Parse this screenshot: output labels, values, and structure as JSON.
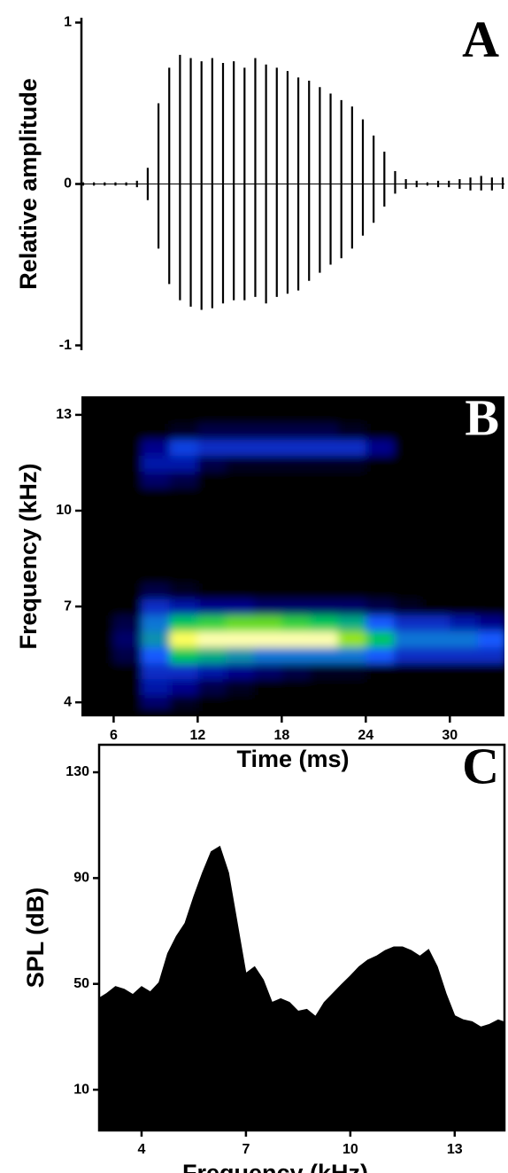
{
  "chart_data": [
    {
      "type": "waveform",
      "ylabel": "Relative amplitude",
      "annotation": "A",
      "color": "#000000",
      "upper": [
        0.01,
        0.01,
        0.01,
        0.01,
        0.01,
        0.02,
        0.1,
        0.5,
        0.72,
        0.8,
        0.78,
        0.76,
        0.78,
        0.75,
        0.76,
        0.72,
        0.78,
        0.74,
        0.72,
        0.7,
        0.66,
        0.64,
        0.6,
        0.56,
        0.52,
        0.48,
        0.4,
        0.3,
        0.2,
        0.08,
        0.03,
        0.02,
        0.01,
        0.02,
        0.02,
        0.03,
        0.04,
        0.05,
        0.04,
        0.04
      ],
      "lower": [
        -0.01,
        -0.01,
        -0.01,
        -0.01,
        -0.01,
        -0.02,
        -0.1,
        -0.4,
        -0.62,
        -0.72,
        -0.76,
        -0.78,
        -0.77,
        -0.74,
        -0.72,
        -0.72,
        -0.7,
        -0.74,
        -0.7,
        -0.68,
        -0.66,
        -0.6,
        -0.55,
        -0.5,
        -0.46,
        -0.4,
        -0.32,
        -0.24,
        -0.14,
        -0.06,
        -0.03,
        -0.02,
        -0.01,
        -0.02,
        -0.02,
        -0.03,
        -0.04,
        -0.04,
        -0.04,
        -0.03
      ],
      "ylim": [
        -1.03,
        1.03
      ],
      "yticks": [
        1,
        0,
        -1
      ]
    },
    {
      "type": "heatmap",
      "xlabel": "Time (ms)",
      "ylabel": "Frequency (kHz)",
      "annotation": "B",
      "x": [
        5,
        7,
        9,
        11,
        13,
        15,
        17,
        19,
        21,
        23,
        25,
        27,
        29,
        31,
        33
      ],
      "y": [
        4,
        4.5,
        5,
        5.5,
        6,
        6.5,
        7,
        7.5,
        8,
        8.5,
        9,
        9.5,
        10,
        10.5,
        11,
        11.5,
        12,
        12.5,
        13
      ],
      "z": [
        [
          0,
          0,
          0.15,
          0.05,
          0,
          0,
          0,
          0,
          0,
          0,
          0,
          0,
          0,
          0,
          0
        ],
        [
          0,
          0,
          0.25,
          0.2,
          0.1,
          0.05,
          0,
          0,
          0,
          0,
          0,
          0,
          0,
          0,
          0
        ],
        [
          0,
          0,
          0.3,
          0.3,
          0.25,
          0.2,
          0.15,
          0.1,
          0.05,
          0.05,
          0,
          0,
          0,
          0,
          0
        ],
        [
          0,
          0.1,
          0.4,
          0.6,
          0.55,
          0.5,
          0.45,
          0.45,
          0.45,
          0.45,
          0.4,
          0.3,
          0.3,
          0.3,
          0.3
        ],
        [
          0,
          0.15,
          0.5,
          0.9,
          0.95,
          0.95,
          0.95,
          0.95,
          0.95,
          0.75,
          0.6,
          0.45,
          0.45,
          0.45,
          0.4
        ],
        [
          0,
          0.1,
          0.45,
          0.6,
          0.65,
          0.7,
          0.7,
          0.65,
          0.6,
          0.55,
          0.4,
          0.3,
          0.3,
          0.25,
          0.2
        ],
        [
          0,
          0,
          0.3,
          0.25,
          0.2,
          0.2,
          0.15,
          0.15,
          0.15,
          0.15,
          0.1,
          0.05,
          0,
          0,
          0
        ],
        [
          0,
          0,
          0.1,
          0.05,
          0,
          0,
          0,
          0,
          0,
          0,
          0,
          0,
          0,
          0,
          0
        ],
        [
          0,
          0,
          0,
          0,
          0,
          0,
          0,
          0,
          0,
          0,
          0,
          0,
          0,
          0,
          0
        ],
        [
          0,
          0,
          0,
          0,
          0,
          0,
          0,
          0,
          0,
          0,
          0,
          0,
          0,
          0,
          0
        ],
        [
          0,
          0,
          0,
          0,
          0,
          0,
          0,
          0,
          0,
          0,
          0,
          0,
          0,
          0,
          0
        ],
        [
          0,
          0,
          0,
          0,
          0,
          0,
          0,
          0,
          0,
          0,
          0,
          0,
          0,
          0,
          0
        ],
        [
          0,
          0,
          0,
          0,
          0,
          0,
          0,
          0,
          0,
          0,
          0,
          0,
          0,
          0,
          0
        ],
        [
          0,
          0,
          0,
          0,
          0,
          0,
          0,
          0,
          0,
          0,
          0,
          0,
          0,
          0,
          0
        ],
        [
          0,
          0,
          0.15,
          0.1,
          0,
          0,
          0,
          0,
          0,
          0,
          0,
          0,
          0,
          0,
          0
        ],
        [
          0,
          0,
          0.25,
          0.25,
          0.1,
          0.05,
          0.05,
          0.05,
          0.05,
          0.05,
          0,
          0,
          0,
          0,
          0
        ],
        [
          0,
          0,
          0.2,
          0.35,
          0.3,
          0.3,
          0.3,
          0.3,
          0.3,
          0.3,
          0.2,
          0,
          0,
          0,
          0
        ],
        [
          0,
          0,
          0,
          0.05,
          0.1,
          0.1,
          0.1,
          0.1,
          0.1,
          0.05,
          0,
          0,
          0,
          0,
          0
        ],
        [
          0,
          0,
          0,
          0,
          0,
          0,
          0,
          0,
          0,
          0,
          0,
          0,
          0,
          0,
          0
        ]
      ],
      "xlim": [
        3.7,
        33.9
      ],
      "ylim": [
        3.56,
        13.58
      ],
      "xticks": [
        6,
        12,
        18,
        24,
        30
      ],
      "yticks": [
        4,
        7,
        10,
        13
      ]
    },
    {
      "type": "area",
      "xlabel": "Frequency (kHz)",
      "ylabel": "SPL (dB)",
      "annotation": "C",
      "color": "#000000",
      "x": [
        2.8,
        3,
        3.25,
        3.5,
        3.75,
        4,
        4.25,
        4.5,
        4.75,
        5,
        5.25,
        5.5,
        5.75,
        6,
        6.25,
        6.5,
        6.75,
        7,
        7.25,
        7.5,
        7.75,
        8,
        8.25,
        8.5,
        8.75,
        9,
        9.25,
        9.5,
        9.75,
        10,
        10.25,
        10.5,
        10.75,
        11,
        11.25,
        11.5,
        11.75,
        12,
        12.25,
        12.5,
        12.75,
        13,
        13.25,
        13.5,
        13.75,
        14,
        14.25,
        14.4
      ],
      "values": [
        44.8,
        46.4,
        49,
        48,
        46,
        49,
        47,
        50.5,
        61.5,
        68,
        73,
        83,
        92,
        100,
        102,
        92,
        73,
        54,
        56.5,
        51.5,
        43,
        44.4,
        43,
        39.7,
        40.4,
        37.7,
        43,
        46.4,
        49.8,
        53,
        56.5,
        59,
        60.5,
        62.6,
        64,
        64,
        62.6,
        60.5,
        63,
        56.5,
        46.4,
        38,
        36.4,
        35.7,
        33.7,
        34.7,
        36.4,
        35.7
      ],
      "xlim": [
        2.78,
        14.43
      ],
      "ylim": [
        -5.4,
        140.4
      ],
      "xticks": [
        4,
        7,
        10,
        13
      ],
      "yticks": [
        10,
        50,
        90,
        130
      ]
    }
  ]
}
